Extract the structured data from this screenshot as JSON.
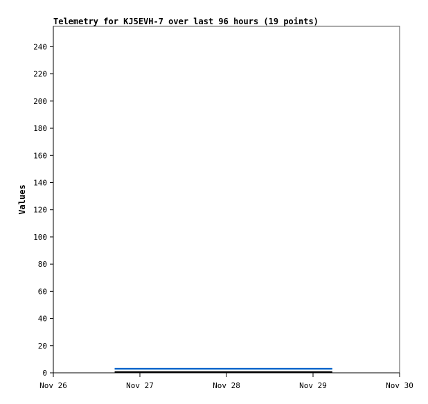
{
  "chart_data": {
    "type": "line",
    "title": "Telemetry for KJ5EVH-7 over last 96 hours (19 points)",
    "xlabel": "",
    "ylabel": "Values",
    "xlim": [
      "2024-11-26T00:00",
      "2024-11-30T00:00"
    ],
    "ylim": [
      0,
      255
    ],
    "x_tick_labels": [
      "Nov 26",
      "Nov 27",
      "Nov 28",
      "Nov 29",
      "Nov 30"
    ],
    "y_ticks": [
      0,
      20,
      40,
      60,
      80,
      100,
      120,
      140,
      160,
      180,
      200,
      220,
      240
    ],
    "grid": false,
    "series": [
      {
        "color": "#0066cc",
        "x": [
          "2024-11-26T17:00",
          "2024-11-29T05:20"
        ],
        "values": [
          3,
          3
        ]
      },
      {
        "color": "#000000",
        "x": [
          "2024-11-26T17:00",
          "2024-11-29T05:20"
        ],
        "values": [
          0.5,
          0.5
        ]
      }
    ]
  }
}
